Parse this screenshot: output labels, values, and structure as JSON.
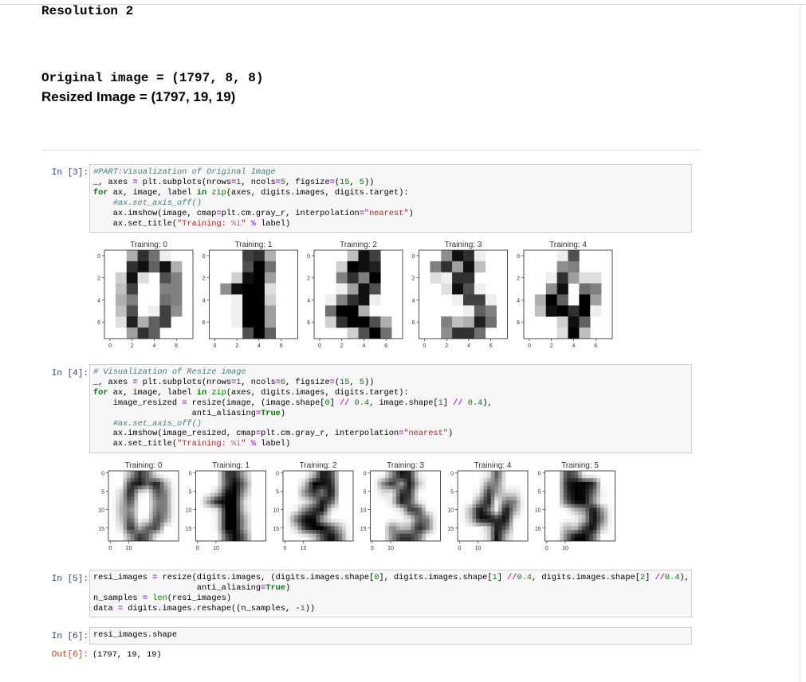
{
  "markdown": {
    "resolution_heading": "Resolution 2",
    "original_line": "Original image = (1797, 8, 8)",
    "resized_line": "Resized Image = (1797, 19, 19)"
  },
  "cells": [
    {
      "prompt": "In [3]:",
      "lines": [
        "#PART:Visualization of Original Image",
        "_, axes = plt.subplots(nrows=1, ncols=5, figsize=(15, 5))",
        "for ax, image, label in zip(axes, digits.images, digits.target):",
        "    #ax.set_axis_off()",
        "    ax.imshow(image, cmap=plt.cm.gray_r, interpolation=\"nearest\")",
        "    ax.set_title(\"Training: %i\" % label)"
      ]
    },
    {
      "prompt": "In [4]:",
      "lines": [
        "# Visualization of Resize image",
        "_, axes = plt.subplots(nrows=1, ncols=6, figsize=(15, 5))",
        "for ax, image, label in zip(axes, digits.images, digits.target):",
        "    image_resized = resize(image, (image.shape[0] // 0.4, image.shape[1] // 0.4),",
        "                    anti_aliasing=True)",
        "    #ax.set_axis_off()",
        "    ax.imshow(image_resized, cmap=plt.cm.gray_r, interpolation=\"nearest\")",
        "    ax.set_title(\"Training: %i\" % label)"
      ]
    },
    {
      "prompt": "In [5]:",
      "lines": [
        "resi_images = resize(digits.images, (digits.images.shape[0], digits.images.shape[1] //0.4, digits.images.shape[2] //0.4),",
        "                     anti_aliasing=True)",
        "n_samples = len(resi_images)",
        "data = digits.images.reshape((n_samples, -1))"
      ]
    },
    {
      "prompt": "In [6]:",
      "lines": [
        "resi_images.shape"
      ]
    }
  ],
  "output": {
    "prompt": "Out[6]:",
    "text": "(1797, 19, 19)"
  },
  "figure_original": {
    "titles": [
      "Training: 0",
      "Training: 1",
      "Training: 2",
      "Training: 3",
      "Training: 4"
    ],
    "yticks": [
      "0",
      "2",
      "4",
      "6"
    ],
    "xticks": [
      "0",
      "2",
      "4",
      "6"
    ],
    "images": [
      [
        0,
        0,
        5,
        13,
        9,
        1,
        0,
        0,
        0,
        0,
        13,
        15,
        10,
        15,
        5,
        0,
        0,
        3,
        15,
        2,
        0,
        11,
        8,
        0,
        0,
        4,
        12,
        0,
        0,
        8,
        8,
        0,
        0,
        5,
        8,
        0,
        0,
        9,
        8,
        0,
        0,
        4,
        11,
        0,
        1,
        12,
        7,
        0,
        0,
        2,
        14,
        5,
        10,
        12,
        0,
        0,
        0,
        0,
        6,
        13,
        10,
        0,
        0,
        0
      ],
      [
        0,
        0,
        0,
        12,
        13,
        5,
        0,
        0,
        0,
        0,
        0,
        11,
        16,
        9,
        0,
        0,
        0,
        0,
        3,
        15,
        16,
        6,
        0,
        0,
        0,
        7,
        15,
        16,
        16,
        2,
        0,
        0,
        0,
        0,
        1,
        16,
        16,
        3,
        0,
        0,
        0,
        0,
        1,
        16,
        16,
        6,
        0,
        0,
        0,
        0,
        1,
        16,
        16,
        6,
        0,
        0,
        0,
        0,
        0,
        11,
        16,
        10,
        0,
        0
      ],
      [
        0,
        0,
        0,
        4,
        15,
        12,
        0,
        0,
        0,
        0,
        3,
        16,
        15,
        14,
        0,
        0,
        0,
        0,
        8,
        13,
        8,
        16,
        0,
        0,
        0,
        0,
        1,
        6,
        15,
        11,
        0,
        0,
        0,
        1,
        8,
        13,
        15,
        1,
        0,
        0,
        0,
        9,
        16,
        16,
        5,
        0,
        0,
        0,
        0,
        3,
        13,
        16,
        16,
        11,
        5,
        0,
        0,
        0,
        0,
        3,
        11,
        16,
        9,
        0
      ],
      [
        0,
        0,
        7,
        15,
        13,
        1,
        0,
        0,
        0,
        8,
        13,
        6,
        15,
        4,
        0,
        0,
        0,
        2,
        1,
        13,
        13,
        0,
        0,
        0,
        0,
        0,
        2,
        15,
        11,
        1,
        0,
        0,
        0,
        0,
        0,
        1,
        12,
        12,
        1,
        0,
        0,
        0,
        0,
        0,
        1,
        10,
        8,
        0,
        0,
        0,
        8,
        4,
        5,
        14,
        9,
        0,
        0,
        0,
        7,
        13,
        13,
        9,
        0,
        0
      ],
      [
        0,
        0,
        0,
        1,
        11,
        0,
        0,
        0,
        0,
        0,
        0,
        7,
        8,
        0,
        0,
        0,
        0,
        0,
        1,
        13,
        6,
        2,
        2,
        0,
        0,
        0,
        7,
        15,
        0,
        9,
        8,
        0,
        0,
        5,
        16,
        10,
        0,
        16,
        6,
        0,
        0,
        4,
        15,
        16,
        13,
        16,
        1,
        0,
        0,
        0,
        0,
        3,
        15,
        10,
        0,
        0,
        0,
        0,
        0,
        2,
        16,
        4,
        0,
        0
      ]
    ]
  },
  "figure_resized": {
    "titles": [
      "Training: 0",
      "Training: 1",
      "Training: 2",
      "Training: 3",
      "Training: 4",
      "Training: 5"
    ],
    "yticks": [
      "0",
      "5",
      "10",
      "15"
    ],
    "xticks": [
      "0",
      "10"
    ],
    "last_image": [
      0,
      0,
      12,
      10,
      0,
      0,
      0,
      0,
      0,
      0,
      14,
      16,
      16,
      14,
      0,
      0,
      0,
      0,
      13,
      16,
      15,
      10,
      1,
      0,
      0,
      0,
      11,
      16,
      16,
      7,
      0,
      0,
      0,
      0,
      0,
      4,
      7,
      16,
      7,
      0,
      0,
      0,
      0,
      0,
      4,
      16,
      9,
      0,
      0,
      0,
      5,
      4,
      12,
      16,
      4,
      0,
      0,
      0,
      9,
      16,
      16,
      10,
      0,
      0
    ]
  }
}
